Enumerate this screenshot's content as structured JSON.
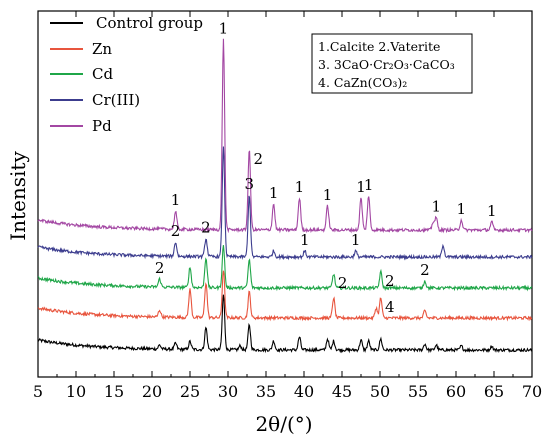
{
  "chart_data": {
    "type": "line",
    "title": "",
    "xlabel": "2θ/(°)",
    "ylabel": "Intensity",
    "xlim": [
      5,
      70
    ],
    "x_ticks": [
      5,
      10,
      15,
      20,
      25,
      30,
      35,
      40,
      45,
      50,
      55,
      60,
      65,
      70
    ],
    "y_ticks_shown": false,
    "legend_position": "top-left",
    "series": [
      {
        "name": "Control group",
        "color": "#000000",
        "offset": 0,
        "peaks": [
          [
            21.0,
            4
          ],
          [
            23.1,
            6
          ],
          [
            25.0,
            8
          ],
          [
            27.1,
            22
          ],
          [
            29.4,
            55
          ],
          [
            31.6,
            4
          ],
          [
            32.8,
            25
          ],
          [
            36.0,
            9
          ],
          [
            39.4,
            13
          ],
          [
            43.1,
            11
          ],
          [
            43.9,
            9
          ],
          [
            47.5,
            10
          ],
          [
            48.5,
            9
          ],
          [
            50.1,
            11
          ],
          [
            55.9,
            6
          ],
          [
            57.4,
            5
          ],
          [
            60.7,
            4
          ],
          [
            64.7,
            4
          ]
        ]
      },
      {
        "name": "Zn",
        "color": "#e8553e",
        "offset": 1,
        "peaks": [
          [
            21.0,
            7
          ],
          [
            25.0,
            28
          ],
          [
            27.1,
            35
          ],
          [
            29.4,
            48
          ],
          [
            32.8,
            26
          ],
          [
            43.9,
            20
          ],
          [
            49.5,
            10
          ],
          [
            50.1,
            20
          ],
          [
            55.9,
            7
          ]
        ]
      },
      {
        "name": "Cd",
        "color": "#1fa648",
        "offset": 2,
        "peaks": [
          [
            21.0,
            8
          ],
          [
            25.0,
            20
          ],
          [
            27.1,
            30
          ],
          [
            29.4,
            42
          ],
          [
            32.8,
            28
          ],
          [
            43.9,
            14
          ],
          [
            50.1,
            16
          ],
          [
            55.9,
            7
          ]
        ]
      },
      {
        "name": "Cr(III)",
        "color": "#3c3d8e",
        "offset": 3,
        "peaks": [
          [
            23.1,
            14
          ],
          [
            27.1,
            18
          ],
          [
            29.4,
            110
          ],
          [
            32.8,
            62
          ],
          [
            36.0,
            6
          ],
          [
            40.1,
            6
          ],
          [
            46.8,
            6
          ],
          [
            58.3,
            12
          ]
        ]
      },
      {
        "name": "Pd",
        "color": "#a347a3",
        "offset": 4,
        "peaks": [
          [
            23.1,
            18
          ],
          [
            29.4,
            190
          ],
          [
            32.8,
            80
          ],
          [
            36.0,
            26
          ],
          [
            39.4,
            32
          ],
          [
            43.1,
            24
          ],
          [
            47.5,
            32
          ],
          [
            48.5,
            34
          ],
          [
            57.0,
            8
          ],
          [
            57.4,
            12
          ],
          [
            60.7,
            10
          ],
          [
            64.7,
            8
          ]
        ]
      }
    ],
    "annotations": [
      {
        "text": "1",
        "x": 23.1,
        "series": "Pd"
      },
      {
        "text": "1",
        "x": 29.4,
        "series": "Pd"
      },
      {
        "text": "3",
        "x": 32.8,
        "series": "Cr(III)"
      },
      {
        "text": "2",
        "x": 32.8,
        "series": "Pd",
        "side": "right"
      },
      {
        "text": "1",
        "x": 36.0,
        "series": "Pd"
      },
      {
        "text": "1",
        "x": 39.4,
        "series": "Pd"
      },
      {
        "text": "1",
        "x": 43.1,
        "series": "Pd"
      },
      {
        "text": "1",
        "x": 47.5,
        "series": "Pd"
      },
      {
        "text": "1",
        "x": 48.5,
        "series": "Pd"
      },
      {
        "text": "1",
        "x": 57.4,
        "series": "Pd"
      },
      {
        "text": "1",
        "x": 60.7,
        "series": "Pd"
      },
      {
        "text": "1",
        "x": 64.7,
        "series": "Pd"
      },
      {
        "text": "2",
        "x": 23.1,
        "series": "Cr(III)"
      },
      {
        "text": "2",
        "x": 27.1,
        "series": "Cr(III)"
      },
      {
        "text": "1",
        "x": 40.1,
        "series": "Cr(III)"
      },
      {
        "text": "1",
        "x": 46.8,
        "series": "Cr(III)"
      },
      {
        "text": "2",
        "x": 21.0,
        "series": "Cd"
      },
      {
        "text": "2",
        "x": 43.9,
        "series": "Cd",
        "side": "right"
      },
      {
        "text": "2",
        "x": 50.1,
        "series": "Cd",
        "side": "right"
      },
      {
        "text": "2",
        "x": 55.9,
        "series": "Cd"
      },
      {
        "text": "4",
        "x": 50.1,
        "series": "Zn",
        "side": "right"
      }
    ],
    "note_box": {
      "line1": "1.Calcite 2.Vaterite",
      "line2": "3. 3CaO·Cr₂O₃·CaCO₃",
      "line3": "4. CaZn(CO₃)₂"
    }
  }
}
